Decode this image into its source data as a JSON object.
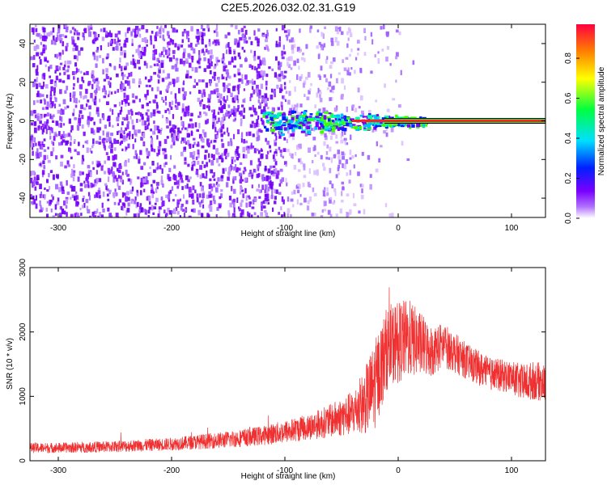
{
  "figure": {
    "title": "C2E5.2026.032.02.31.G19"
  },
  "chart_data": [
    {
      "type": "heatmap",
      "xlabel": "Height of straight line (km)",
      "ylabel": "Frequency (Hz)",
      "xlim": [
        -325,
        130
      ],
      "ylim": [
        -50,
        50
      ],
      "x_ticks": [
        -300,
        -200,
        -100,
        0,
        100
      ],
      "y_ticks": [
        -40,
        -20,
        0,
        20,
        40
      ],
      "grid": false,
      "colorbar": {
        "label": "Normalized spectral amplitude",
        "range": [
          0.0,
          0.97
        ],
        "ticks": [
          "0.0",
          "0.2",
          "0.4",
          "0.6",
          "0.8"
        ],
        "colormap": [
          "#ffffff",
          "#7a00ff",
          "#0020ff",
          "#00e0ff",
          "#00ff40",
          "#ffff00",
          "#ff8000",
          "#ff0040"
        ]
      },
      "features": {
        "noise_region_x": [
          -325,
          -40
        ],
        "noise_fade_x": [
          -40,
          15
        ],
        "carrier_start_x": -120,
        "carrier_frequency": 0,
        "carrier_line_x": [
          25,
          130
        ],
        "carrier_spread_hz": [
          -8,
          8
        ]
      }
    },
    {
      "type": "line",
      "xlabel": "Height of straight line (km)",
      "ylabel": "SNR (10 * v/v)",
      "xlim": [
        -325,
        130
      ],
      "ylim": [
        0,
        3000
      ],
      "x_ticks": [
        -300,
        -200,
        -100,
        0,
        100
      ],
      "y_ticks": [
        0,
        1000,
        2000,
        3000
      ],
      "color": "#f03030",
      "grid": false,
      "series_envelope": {
        "x": [
          -325,
          -300,
          -250,
          -200,
          -150,
          -120,
          -100,
          -80,
          -60,
          -40,
          -30,
          -20,
          -10,
          0,
          10,
          20,
          30,
          40,
          60,
          80,
          100,
          110,
          120,
          130
        ],
        "mean": [
          200,
          200,
          220,
          260,
          330,
          390,
          450,
          520,
          620,
          740,
          900,
          1200,
          1750,
          1850,
          1900,
          1800,
          1700,
          1800,
          1550,
          1350,
          1300,
          1200,
          1250,
          1200
        ],
        "spread": [
          80,
          80,
          90,
          100,
          130,
          150,
          180,
          200,
          260,
          350,
          500,
          700,
          650,
          650,
          600,
          500,
          400,
          350,
          280,
          260,
          250,
          300,
          300,
          300
        ]
      }
    }
  ]
}
